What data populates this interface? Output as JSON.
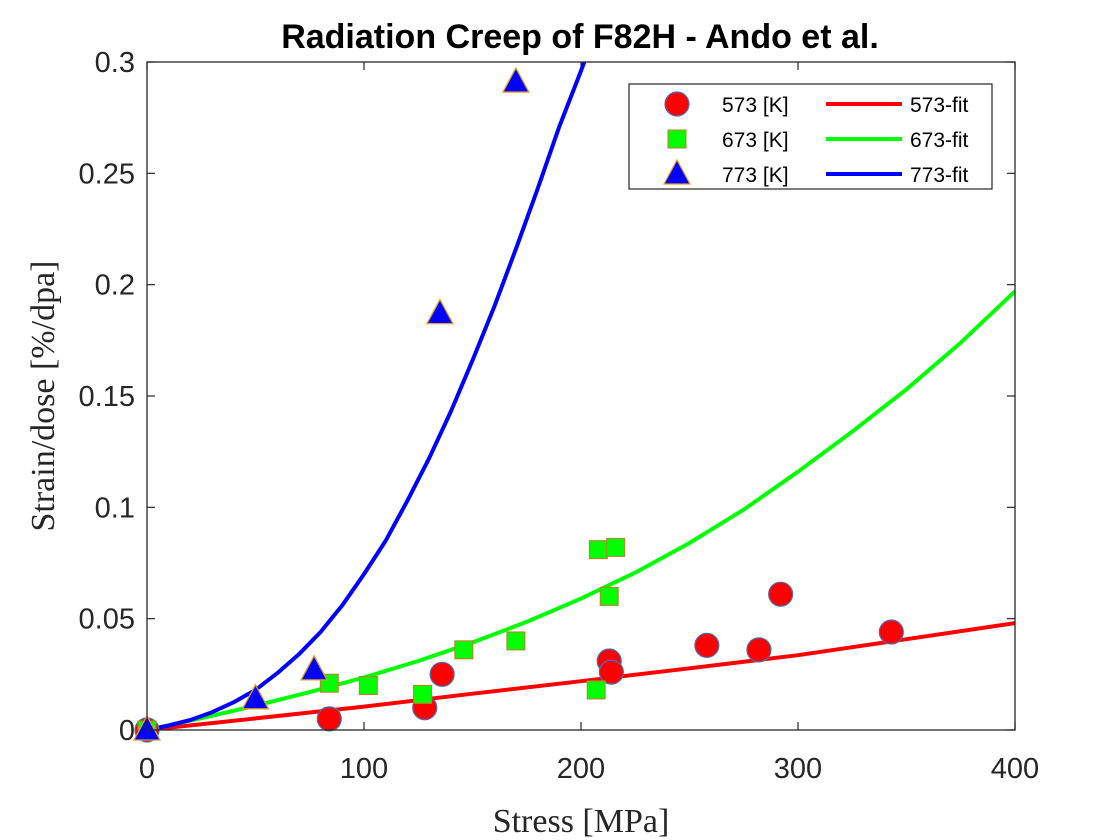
{
  "chart_data": {
    "type": "scatter",
    "title": "Radiation Creep of F82H - Ando et al.",
    "xlabel": "Stress [MPa]",
    "ylabel": "Strain/dose [%/dpa]",
    "xlim": [
      0,
      400
    ],
    "ylim": [
      0,
      0.3
    ],
    "xticks": [
      0,
      100,
      200,
      300,
      400
    ],
    "xtick_labels": [
      "0",
      "100",
      "200",
      "300",
      "400"
    ],
    "yticks": [
      0,
      0.05,
      0.1,
      0.15,
      0.2,
      0.25,
      0.3
    ],
    "ytick_labels": [
      "0",
      "0.05",
      "0.1",
      "0.15",
      "0.2",
      "0.25",
      "0.3"
    ],
    "grid": false,
    "legend_position": "top-right",
    "series": [
      {
        "name": "573 [K]",
        "marker": "circle",
        "color": "#ff0000",
        "points": [
          [
            0,
            0
          ],
          [
            84,
            0.005
          ],
          [
            128,
            0.01
          ],
          [
            136,
            0.025
          ],
          [
            213,
            0.031
          ],
          [
            214,
            0.026
          ],
          [
            258,
            0.038
          ],
          [
            282,
            0.036
          ],
          [
            292,
            0.061
          ],
          [
            343,
            0.044
          ]
        ]
      },
      {
        "name": "673 [K]",
        "marker": "square",
        "color": "#00ff00",
        "points": [
          [
            0,
            0
          ],
          [
            84,
            0.021
          ],
          [
            102,
            0.02
          ],
          [
            127,
            0.016
          ],
          [
            146,
            0.036
          ],
          [
            170,
            0.04
          ],
          [
            207,
            0.018
          ],
          [
            208,
            0.081
          ],
          [
            213,
            0.06
          ],
          [
            216,
            0.082
          ]
        ]
      },
      {
        "name": "773 [K]",
        "marker": "triangle",
        "color": "#0000ff",
        "points": [
          [
            0,
            0
          ],
          [
            50,
            0.014
          ],
          [
            77,
            0.027
          ],
          [
            135,
            0.187
          ],
          [
            170,
            0.291
          ]
        ]
      }
    ],
    "fits": [
      {
        "name": "573-fit",
        "color": "#ff0000",
        "x": [
          0,
          50,
          100,
          150,
          200,
          250,
          300,
          350,
          400
        ],
        "y": [
          0,
          0.0052,
          0.0105,
          0.0163,
          0.0219,
          0.0277,
          0.0336,
          0.0408,
          0.048
        ]
      },
      {
        "name": "673-fit",
        "color": "#00ff00",
        "x": [
          0,
          25,
          50,
          75,
          100,
          125,
          150,
          175,
          200,
          225,
          250,
          275,
          300,
          325,
          350,
          375,
          400
        ],
        "y": [
          0,
          0.0053,
          0.0109,
          0.017,
          0.0236,
          0.031,
          0.0393,
          0.0486,
          0.059,
          0.0707,
          0.084,
          0.099,
          0.116,
          0.134,
          0.153,
          0.174,
          0.197
        ]
      },
      {
        "name": "773-fit",
        "color": "#0000ff",
        "x": [
          0,
          10,
          20,
          30,
          40,
          50,
          60,
          70,
          80,
          90,
          100,
          110,
          120,
          130,
          140,
          150,
          160,
          170,
          180,
          190,
          200,
          203
        ],
        "y": [
          0,
          0.002,
          0.0045,
          0.008,
          0.0125,
          0.018,
          0.0255,
          0.034,
          0.044,
          0.056,
          0.07,
          0.085,
          0.103,
          0.122,
          0.143,
          0.166,
          0.19,
          0.216,
          0.243,
          0.271,
          0.296,
          0.304
        ]
      }
    ]
  }
}
